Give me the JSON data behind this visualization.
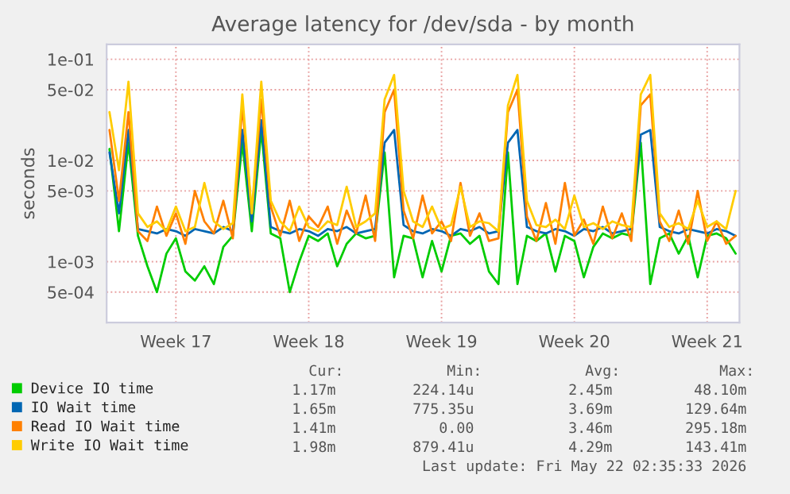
{
  "chart_data": {
    "type": "line",
    "title": "Average latency for /dev/sda - by month",
    "ylabel": "seconds",
    "log": "y",
    "grid": true,
    "legend": "bottom left",
    "line_style": "solid",
    "categories": [
      null,
      null,
      null,
      null,
      null,
      null,
      null,
      "Week 17",
      null,
      null,
      null,
      null,
      null,
      null,
      null,
      null,
      null,
      null,
      null,
      null,
      null,
      "Week 18",
      null,
      null,
      null,
      null,
      null,
      null,
      null,
      null,
      null,
      null,
      null,
      null,
      null,
      "Week 19",
      null,
      null,
      null,
      null,
      null,
      null,
      null,
      null,
      null,
      null,
      null,
      null,
      null,
      "Week 20",
      null,
      null,
      null,
      null,
      null,
      null,
      null,
      null,
      null,
      null,
      null,
      null,
      null,
      "Week 21",
      null,
      null,
      null
    ],
    "ylim": [
      0.00025,
      0.14
    ],
    "yticks": [
      {
        "value": 0.1,
        "label": "1e-01"
      },
      {
        "value": 0.05,
        "label": "5e-02"
      },
      {
        "value": 0.01,
        "label": "1e-02"
      },
      {
        "value": 0.005,
        "label": "5e-03"
      },
      {
        "value": 0.001,
        "label": "1e-03"
      },
      {
        "value": 0.0005,
        "label": "5e-04"
      }
    ],
    "series": [
      {
        "name": "Device IO time",
        "color": "#00cc00",
        "values": [
          0.013,
          0.002,
          0.015,
          0.0018,
          0.0009,
          0.0005,
          0.0012,
          0.0017,
          0.0008,
          0.00065,
          0.0009,
          0.0006,
          0.0014,
          0.0018,
          0.015,
          0.002,
          0.02,
          0.0019,
          0.0017,
          0.0005,
          0.001,
          0.0018,
          0.0016,
          0.0019,
          0.0009,
          0.0015,
          0.0019,
          0.0017,
          0.0018,
          0.012,
          0.0007,
          0.0018,
          0.0017,
          0.0007,
          0.0016,
          0.0008,
          0.0018,
          0.0019,
          0.0015,
          0.0018,
          0.0008,
          0.0006,
          0.012,
          0.0006,
          0.0018,
          0.0016,
          0.0019,
          0.0008,
          0.0018,
          0.0016,
          0.0007,
          0.0014,
          0.0019,
          0.0017,
          0.0019,
          0.0018,
          0.015,
          0.0006,
          0.0017,
          0.0019,
          0.0012,
          0.0018,
          0.0007,
          0.0018,
          0.0019,
          0.0017,
          0.0012
        ]
      },
      {
        "name": "IO Wait time",
        "color": "#0066b3",
        "values": [
          0.012,
          0.003,
          0.02,
          0.0021,
          0.002,
          0.0019,
          0.0021,
          0.002,
          0.0018,
          0.0021,
          0.002,
          0.0019,
          0.0022,
          0.002,
          0.02,
          0.0025,
          0.025,
          0.0022,
          0.002,
          0.0019,
          0.0021,
          0.002,
          0.0018,
          0.0021,
          0.002,
          0.0022,
          0.0019,
          0.002,
          0.0021,
          0.015,
          0.02,
          0.0023,
          0.002,
          0.0019,
          0.0021,
          0.002,
          0.0018,
          0.0021,
          0.002,
          0.0022,
          0.0019,
          0.002,
          0.015,
          0.02,
          0.0022,
          0.002,
          0.0019,
          0.0021,
          0.002,
          0.0018,
          0.0021,
          0.002,
          0.0022,
          0.0019,
          0.002,
          0.0021,
          0.018,
          0.02,
          0.0022,
          0.002,
          0.0019,
          0.0021,
          0.002,
          0.0019,
          0.0021,
          0.002,
          0.0018
        ]
      },
      {
        "name": "Read IO Wait time",
        "color": "#ff8000",
        "values": [
          0.02,
          0.004,
          0.03,
          0.002,
          0.0016,
          0.0035,
          0.0018,
          0.003,
          0.0015,
          0.005,
          0.0025,
          0.0019,
          0.004,
          0.0017,
          0.035,
          0.003,
          0.04,
          0.0035,
          0.0018,
          0.004,
          0.0016,
          0.0028,
          0.0022,
          0.0035,
          0.0015,
          0.0032,
          0.0019,
          0.0045,
          0.0016,
          0.03,
          0.05,
          0.0032,
          0.0017,
          0.0045,
          0.0019,
          0.0025,
          0.0016,
          0.006,
          0.0018,
          0.003,
          0.0016,
          0.0017,
          0.03,
          0.05,
          0.0028,
          0.0016,
          0.0038,
          0.0015,
          0.006,
          0.0018,
          0.0026,
          0.0015,
          0.0035,
          0.0017,
          0.003,
          0.0016,
          0.035,
          0.045,
          0.0025,
          0.0016,
          0.0032,
          0.0015,
          0.005,
          0.0016,
          0.0025,
          0.0015,
          0.0018
        ]
      },
      {
        "name": "Write IO Wait time",
        "color": "#ffcc00",
        "values": [
          0.03,
          0.008,
          0.06,
          0.003,
          0.0022,
          0.0025,
          0.002,
          0.0035,
          0.002,
          0.0022,
          0.006,
          0.0025,
          0.0021,
          0.0024,
          0.045,
          0.003,
          0.06,
          0.004,
          0.0025,
          0.002,
          0.0035,
          0.0022,
          0.002,
          0.0025,
          0.0023,
          0.0055,
          0.0022,
          0.0025,
          0.003,
          0.04,
          0.07,
          0.005,
          0.0025,
          0.0022,
          0.0035,
          0.0021,
          0.0023,
          0.0055,
          0.0022,
          0.0025,
          0.0024,
          0.002,
          0.035,
          0.07,
          0.004,
          0.0023,
          0.0022,
          0.0026,
          0.0021,
          0.0045,
          0.0022,
          0.0024,
          0.0021,
          0.0025,
          0.0023,
          0.0022,
          0.045,
          0.07,
          0.003,
          0.0022,
          0.0024,
          0.0021,
          0.004,
          0.0022,
          0.0025,
          0.0021,
          0.005
        ]
      }
    ],
    "annotations": [
      "Cur:",
      "Min:",
      "Avg:",
      "Max:",
      "1.17m",
      "224.14u",
      "2.45m",
      "48.10m",
      "1.65m",
      "775.35u",
      "3.69m",
      "129.64m",
      "1.41m",
      "0.00",
      "3.46m",
      "295.18m",
      "1.98m",
      "879.41u",
      "4.29m",
      "143.41m",
      "Last update: Fri May 22 02:35:33 2026"
    ]
  }
}
